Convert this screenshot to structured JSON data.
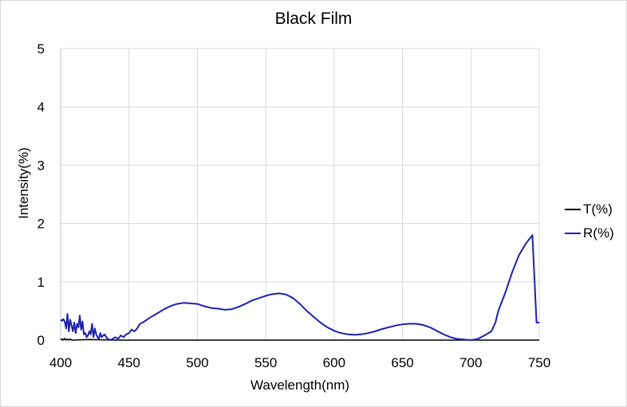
{
  "chart_data": {
    "type": "line",
    "title": "Black Film",
    "xlabel": "Wavelength(nm)",
    "ylabel": "Intensity(%)",
    "xlim": [
      400,
      750
    ],
    "ylim": [
      0,
      5
    ],
    "xticks": [
      400,
      450,
      500,
      550,
      600,
      650,
      700,
      750
    ],
    "yticks": [
      0,
      1,
      2,
      3,
      4,
      5
    ],
    "grid": true,
    "legend_position": "right",
    "series": [
      {
        "name": "T(%)",
        "color": "#000000",
        "x": [
          400,
          401,
          402,
          403,
          404,
          405,
          406,
          407,
          408,
          410,
          420,
          440,
          460,
          500,
          550,
          600,
          650,
          700,
          750
        ],
        "y": [
          0,
          0.02,
          0,
          0.03,
          0,
          0.02,
          0,
          0.02,
          0,
          0,
          0.01,
          0,
          0,
          0,
          0,
          0,
          0,
          0,
          0
        ]
      },
      {
        "name": "R(%)",
        "color": "#1f1fb0",
        "x": [
          400,
          401,
          402,
          403,
          404,
          405,
          406,
          407,
          408,
          409,
          410,
          411,
          412,
          413,
          414,
          415,
          416,
          417,
          418,
          419,
          420,
          421,
          422,
          423,
          424,
          425,
          426,
          427,
          428,
          429,
          430,
          432,
          434,
          436,
          438,
          440,
          442,
          444,
          446,
          448,
          450,
          452,
          454,
          456,
          458,
          460,
          465,
          470,
          475,
          480,
          485,
          490,
          495,
          500,
          505,
          510,
          515,
          520,
          525,
          530,
          535,
          540,
          545,
          550,
          555,
          560,
          565,
          570,
          575,
          580,
          585,
          590,
          595,
          600,
          605,
          610,
          615,
          620,
          625,
          630,
          635,
          640,
          645,
          650,
          655,
          660,
          665,
          670,
          675,
          680,
          685,
          690,
          695,
          700,
          705,
          710,
          715,
          718,
          720,
          725,
          730,
          735,
          740,
          745,
          748,
          750
        ],
        "y": [
          0.35,
          0.33,
          0.36,
          0.32,
          0.2,
          0.45,
          0.15,
          0.35,
          0.25,
          0.15,
          0.3,
          0.12,
          0.28,
          0.22,
          0.42,
          0.18,
          0.32,
          0.1,
          0.12,
          0.05,
          0.08,
          0.15,
          0.1,
          0.28,
          0.05,
          0.2,
          0.1,
          0.05,
          0.02,
          0.12,
          0.05,
          0.1,
          0.03,
          0.0,
          0.02,
          0.05,
          0.02,
          0.08,
          0.05,
          0.1,
          0.12,
          0.18,
          0.15,
          0.2,
          0.28,
          0.3,
          0.38,
          0.45,
          0.52,
          0.58,
          0.62,
          0.64,
          0.63,
          0.62,
          0.58,
          0.55,
          0.54,
          0.52,
          0.53,
          0.57,
          0.62,
          0.68,
          0.72,
          0.76,
          0.79,
          0.8,
          0.78,
          0.72,
          0.62,
          0.5,
          0.4,
          0.3,
          0.22,
          0.16,
          0.12,
          0.1,
          0.09,
          0.1,
          0.12,
          0.15,
          0.19,
          0.22,
          0.25,
          0.27,
          0.28,
          0.28,
          0.26,
          0.22,
          0.16,
          0.1,
          0.05,
          0.02,
          0.01,
          0.0,
          0.02,
          0.08,
          0.15,
          0.3,
          0.5,
          0.8,
          1.15,
          1.45,
          1.65,
          1.8,
          0.3,
          0.3
        ]
      }
    ]
  }
}
